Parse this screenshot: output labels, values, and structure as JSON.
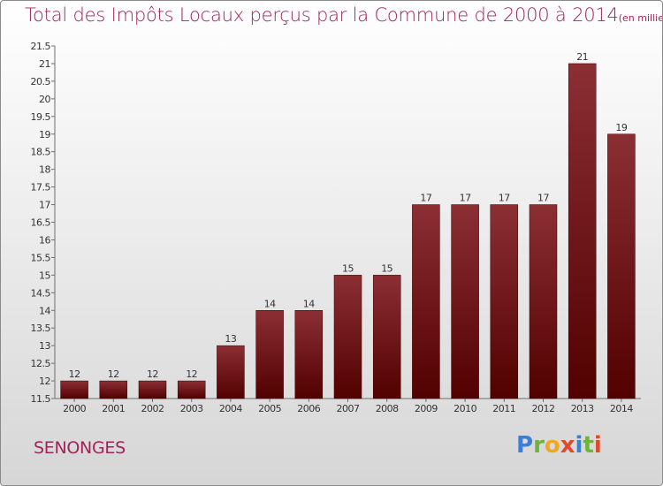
{
  "title": "Total des Impôts Locaux perçus par la Commune de 2000 à 2014",
  "unit_note": "(en milliers d'€)",
  "commune": "SENONGES",
  "logo_text": "Proxiti",
  "colors": {
    "bar_top": "#8b2f35",
    "bar_bottom": "#520000",
    "title": "#a0245a"
  },
  "chart_data": {
    "type": "bar",
    "title": "Total des Impôts Locaux perçus par la Commune de 2000 à 2014",
    "categories": [
      "2000",
      "2001",
      "2002",
      "2003",
      "2004",
      "2005",
      "2006",
      "2007",
      "2008",
      "2009",
      "2010",
      "2011",
      "2012",
      "2013",
      "2014"
    ],
    "values": [
      12,
      12,
      12,
      12,
      13,
      14,
      14,
      15,
      15,
      17,
      17,
      17,
      17,
      21,
      19
    ],
    "ylim": [
      11.5,
      21.5
    ],
    "yticks": [
      "11.5",
      "12",
      "12.5",
      "13",
      "13.5",
      "14",
      "14.5",
      "15",
      "15.5",
      "16",
      "16.5",
      "17",
      "17.5",
      "18",
      "18.5",
      "19",
      "19.5",
      "20",
      "20.5",
      "21",
      "21.5"
    ],
    "grid": false
  }
}
